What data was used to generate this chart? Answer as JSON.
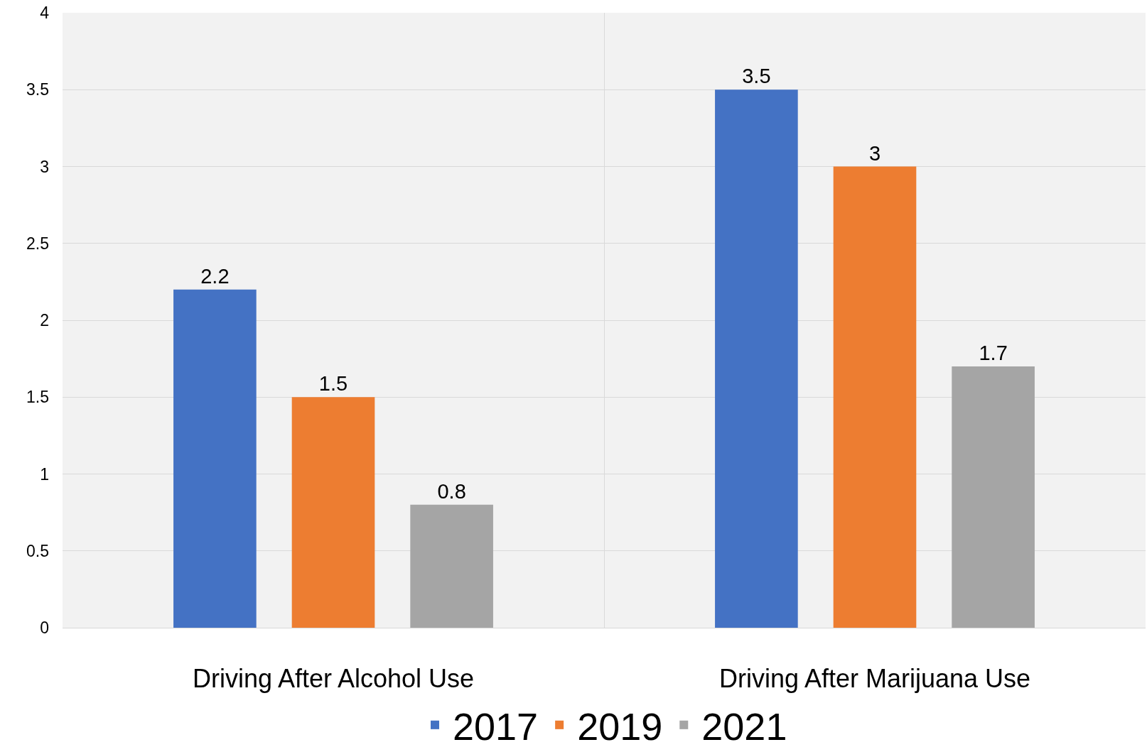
{
  "chart_data": {
    "type": "bar",
    "categories": [
      "Driving After Alcohol Use",
      "Driving After Marijuana Use"
    ],
    "series": [
      {
        "name": "2017",
        "color": "#4472c4",
        "values": [
          2.2,
          3.5
        ]
      },
      {
        "name": "2019",
        "color": "#ed7d31",
        "values": [
          1.5,
          3
        ]
      },
      {
        "name": "2021",
        "color": "#a5a5a5",
        "values": [
          0.8,
          1.7
        ]
      }
    ],
    "ylim": [
      0,
      4
    ],
    "yticks": [
      0,
      0.5,
      1,
      1.5,
      2,
      2.5,
      3,
      3.5,
      4
    ],
    "grid": true,
    "legend": "bottom",
    "data_labels": true
  }
}
